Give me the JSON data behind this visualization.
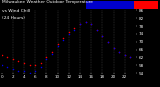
{
  "background_color": "#000000",
  "plot_bg_color": "#000000",
  "grid_color": "#606060",
  "title_bar_blue": "#0000cc",
  "title_bar_red": "#ff0000",
  "temp_color": "#ff0000",
  "windchill_color": "#0000ee",
  "dot_color_black": "#000000",
  "ylim": [
    54,
    86
  ],
  "xlim": [
    0,
    24
  ],
  "temp_x": [
    0,
    1,
    2,
    3,
    4,
    5,
    6,
    7,
    8,
    9,
    10,
    11,
    12,
    13,
    14,
    15,
    16,
    17,
    18,
    19,
    20,
    21,
    22,
    23
  ],
  "temp_y": [
    63,
    62,
    61,
    60,
    59,
    58,
    58,
    59,
    62,
    65,
    69,
    72,
    75,
    77,
    79,
    80,
    79,
    76,
    73,
    70,
    67,
    65,
    63,
    62
  ],
  "wc_x": [
    0,
    1,
    2,
    3,
    4,
    5,
    6,
    7,
    8,
    9,
    10,
    11,
    12,
    13,
    14,
    15,
    16,
    17,
    18,
    19,
    20,
    21,
    22,
    23
  ],
  "wc_y": [
    58,
    57,
    56,
    55,
    55,
    54,
    55,
    57,
    61,
    64,
    68,
    71,
    74,
    76,
    79,
    80,
    79,
    76,
    73,
    70,
    67,
    65,
    63,
    62
  ],
  "yticks": [
    54,
    58,
    62,
    66,
    70,
    74,
    78,
    82,
    86
  ],
  "xticks": [
    0,
    2,
    4,
    6,
    8,
    10,
    12,
    14,
    16,
    18,
    20,
    22
  ],
  "tick_color": "#ffffff",
  "tick_fontsize": 3.0,
  "title_text": "Milwaukee Weather Outdoor Temperature",
  "title_text2": "vs Wind Chill",
  "title_text3": "(24 Hours)",
  "title_fontsize": 3.2,
  "title_color": "#ffffff",
  "grid_vlines": [
    2,
    4,
    6,
    8,
    10,
    12,
    14,
    16,
    18,
    20,
    22
  ]
}
